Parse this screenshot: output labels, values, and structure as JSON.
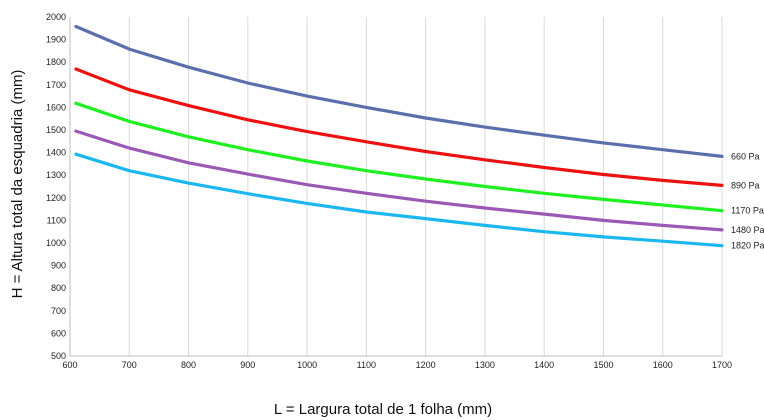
{
  "chart_data": {
    "type": "line",
    "title": "",
    "xlabel": "L = Largura total de 1 folha (mm)",
    "ylabel": "H = Altura total da esquadria (mm)",
    "xlim": [
      600,
      1700
    ],
    "ylim": [
      500,
      2000
    ],
    "x_ticks": [
      600,
      700,
      800,
      900,
      1000,
      1100,
      1200,
      1300,
      1400,
      1500,
      1600,
      1700
    ],
    "y_ticks": [
      500,
      600,
      700,
      800,
      900,
      1000,
      1100,
      1200,
      1300,
      1400,
      1500,
      1600,
      1700,
      1800,
      1900,
      2000
    ],
    "grid": "vertical",
    "legend": "labels at line ends (right)",
    "x": [
      610,
      700,
      800,
      900,
      1000,
      1100,
      1200,
      1300,
      1400,
      1500,
      1600,
      1700
    ],
    "series": [
      {
        "name": "660 Pa",
        "color": "#5b6fad",
        "values": [
          1958,
          1858,
          1778,
          1708,
          1650,
          1600,
          1553,
          1513,
          1477,
          1443,
          1413,
          1383
        ]
      },
      {
        "name": "890 Pa",
        "color": "#ee1111",
        "values": [
          1770,
          1678,
          1608,
          1545,
          1493,
          1448,
          1405,
          1368,
          1334,
          1303,
          1277,
          1255
        ]
      },
      {
        "name": "1170 Pa",
        "color": "#1ff01f",
        "values": [
          1618,
          1538,
          1470,
          1413,
          1363,
          1320,
          1283,
          1250,
          1220,
          1193,
          1168,
          1143
        ]
      },
      {
        "name": "1480 Pa",
        "color": "#9b59b6",
        "values": [
          1495,
          1420,
          1355,
          1305,
          1258,
          1220,
          1185,
          1155,
          1128,
          1100,
          1078,
          1058
        ]
      },
      {
        "name": "1820 Pa",
        "color": "#1ab7f0",
        "values": [
          1393,
          1320,
          1265,
          1218,
          1175,
          1137,
          1108,
          1078,
          1050,
          1027,
          1008,
          988
        ]
      }
    ]
  }
}
